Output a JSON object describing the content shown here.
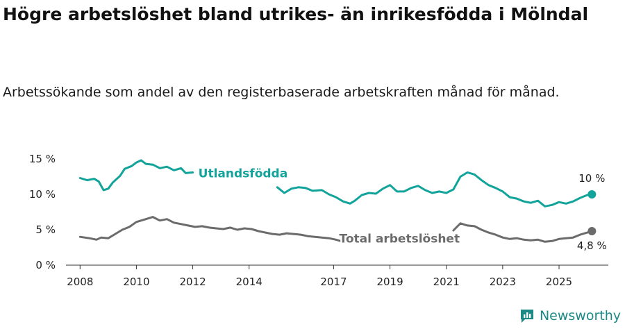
{
  "title": "Högre arbetslöshet bland utrikes- än inrikesfödda i Mölndal",
  "subtitle": "Arbetssökande som andel av den registerbaserade arbetskraften månad för månad.",
  "brand": {
    "name": "Newsworthy",
    "icon": "newsworthy-logo-icon",
    "color": "#1b8a86"
  },
  "chart_data": {
    "type": "line",
    "x_tick_labels": [
      "2008",
      "2010",
      "2012",
      "2014",
      "2017",
      "2019",
      "2021",
      "2023",
      "2025"
    ],
    "y_tick_labels": [
      "0 %",
      "5 %",
      "10 %",
      "15 %"
    ],
    "ylim": [
      0,
      15
    ],
    "grid": false,
    "legend": "inline labels",
    "series": [
      {
        "name": "Utlandsfödda",
        "color": "#12a39a",
        "end_label": "10 %",
        "points": [
          [
            "2008-01",
            12.3
          ],
          [
            "2008-04",
            12.0
          ],
          [
            "2008-07",
            12.2
          ],
          [
            "2008-09",
            11.8
          ],
          [
            "2008-11",
            10.6
          ],
          [
            "2009-01",
            10.8
          ],
          [
            "2009-03",
            11.7
          ],
          [
            "2009-06",
            12.6
          ],
          [
            "2009-08",
            13.6
          ],
          [
            "2009-11",
            14.0
          ],
          [
            "2010-01",
            14.5
          ],
          [
            "2010-03",
            14.8
          ],
          [
            "2010-05",
            14.3
          ],
          [
            "2010-08",
            14.2
          ],
          [
            "2010-11",
            13.7
          ],
          [
            "2011-02",
            13.9
          ],
          [
            "2011-05",
            13.4
          ],
          [
            "2011-08",
            13.7
          ],
          [
            "2011-10",
            13.0
          ],
          [
            "2012-01",
            13.1
          ],
          null,
          [
            "2015-01",
            11.0
          ],
          [
            "2015-04",
            10.2
          ],
          [
            "2015-07",
            10.8
          ],
          [
            "2015-10",
            11.0
          ],
          [
            "2016-01",
            10.9
          ],
          [
            "2016-04",
            10.5
          ],
          [
            "2016-08",
            10.6
          ],
          [
            "2016-11",
            10.0
          ],
          [
            "2017-02",
            9.6
          ],
          [
            "2017-05",
            9.0
          ],
          [
            "2017-08",
            8.7
          ],
          [
            "2017-10",
            9.1
          ],
          [
            "2018-01",
            9.9
          ],
          [
            "2018-04",
            10.2
          ],
          [
            "2018-07",
            10.1
          ],
          [
            "2018-10",
            10.8
          ],
          [
            "2019-01",
            11.3
          ],
          [
            "2019-04",
            10.4
          ],
          [
            "2019-07",
            10.4
          ],
          [
            "2019-10",
            10.9
          ],
          [
            "2020-01",
            11.2
          ],
          [
            "2020-04",
            10.6
          ],
          [
            "2020-07",
            10.2
          ],
          [
            "2020-10",
            10.4
          ],
          [
            "2021-01",
            10.2
          ],
          [
            "2021-04",
            10.7
          ],
          [
            "2021-07",
            12.5
          ],
          [
            "2021-10",
            13.1
          ],
          [
            "2022-01",
            12.8
          ],
          [
            "2022-04",
            12.0
          ],
          [
            "2022-07",
            11.3
          ],
          [
            "2022-10",
            10.9
          ],
          [
            "2023-01",
            10.4
          ],
          [
            "2023-04",
            9.6
          ],
          [
            "2023-07",
            9.4
          ],
          [
            "2023-10",
            9.0
          ],
          [
            "2024-01",
            8.8
          ],
          [
            "2024-04",
            9.1
          ],
          [
            "2024-07",
            8.3
          ],
          [
            "2024-10",
            8.5
          ],
          [
            "2025-01",
            8.9
          ],
          [
            "2025-04",
            8.7
          ],
          [
            "2025-07",
            9.0
          ],
          [
            "2025-10",
            9.5
          ],
          [
            "2026-01",
            9.9
          ],
          [
            "2026-03",
            10.0
          ]
        ]
      },
      {
        "name": "Total arbetslöshet",
        "color": "#6b6b6b",
        "end_label": "4,8 %",
        "points": [
          [
            "2008-01",
            4.0
          ],
          [
            "2008-05",
            3.8
          ],
          [
            "2008-08",
            3.6
          ],
          [
            "2008-10",
            3.9
          ],
          [
            "2009-01",
            3.8
          ],
          [
            "2009-04",
            4.4
          ],
          [
            "2009-07",
            5.0
          ],
          [
            "2009-10",
            5.4
          ],
          [
            "2010-01",
            6.1
          ],
          [
            "2010-05",
            6.5
          ],
          [
            "2010-08",
            6.8
          ],
          [
            "2010-11",
            6.3
          ],
          [
            "2011-02",
            6.5
          ],
          [
            "2011-05",
            6.0
          ],
          [
            "2011-08",
            5.8
          ],
          [
            "2011-11",
            5.6
          ],
          [
            "2012-02",
            5.4
          ],
          [
            "2012-05",
            5.5
          ],
          [
            "2012-08",
            5.3
          ],
          [
            "2012-11",
            5.2
          ],
          [
            "2013-02",
            5.1
          ],
          [
            "2013-05",
            5.3
          ],
          [
            "2013-08",
            5.0
          ],
          [
            "2013-11",
            5.2
          ],
          [
            "2014-02",
            5.1
          ],
          [
            "2014-05",
            4.8
          ],
          [
            "2014-08",
            4.6
          ],
          [
            "2014-11",
            4.4
          ],
          [
            "2015-02",
            4.3
          ],
          [
            "2015-05",
            4.5
          ],
          [
            "2015-08",
            4.4
          ],
          [
            "2015-11",
            4.3
          ],
          [
            "2016-02",
            4.1
          ],
          [
            "2016-05",
            4.0
          ],
          [
            "2016-08",
            3.9
          ],
          [
            "2016-11",
            3.8
          ],
          [
            "2017-02",
            3.6
          ],
          [
            "2017-05",
            3.3
          ],
          [
            "2017-08",
            3.5
          ],
          [
            "2017-10",
            3.7
          ],
          [
            "2017-12",
            3.6
          ],
          null,
          [
            "2021-04",
            4.9
          ],
          [
            "2021-07",
            5.9
          ],
          [
            "2021-10",
            5.6
          ],
          [
            "2022-01",
            5.5
          ],
          [
            "2022-04",
            5.0
          ],
          [
            "2022-07",
            4.6
          ],
          [
            "2022-10",
            4.3
          ],
          [
            "2023-01",
            3.9
          ],
          [
            "2023-04",
            3.7
          ],
          [
            "2023-07",
            3.8
          ],
          [
            "2023-10",
            3.6
          ],
          [
            "2024-01",
            3.5
          ],
          [
            "2024-04",
            3.6
          ],
          [
            "2024-07",
            3.3
          ],
          [
            "2024-10",
            3.4
          ],
          [
            "2025-01",
            3.7
          ],
          [
            "2025-04",
            3.8
          ],
          [
            "2025-07",
            3.9
          ],
          [
            "2025-10",
            4.3
          ],
          [
            "2026-01",
            4.6
          ],
          [
            "2026-03",
            4.8
          ]
        ]
      }
    ]
  }
}
